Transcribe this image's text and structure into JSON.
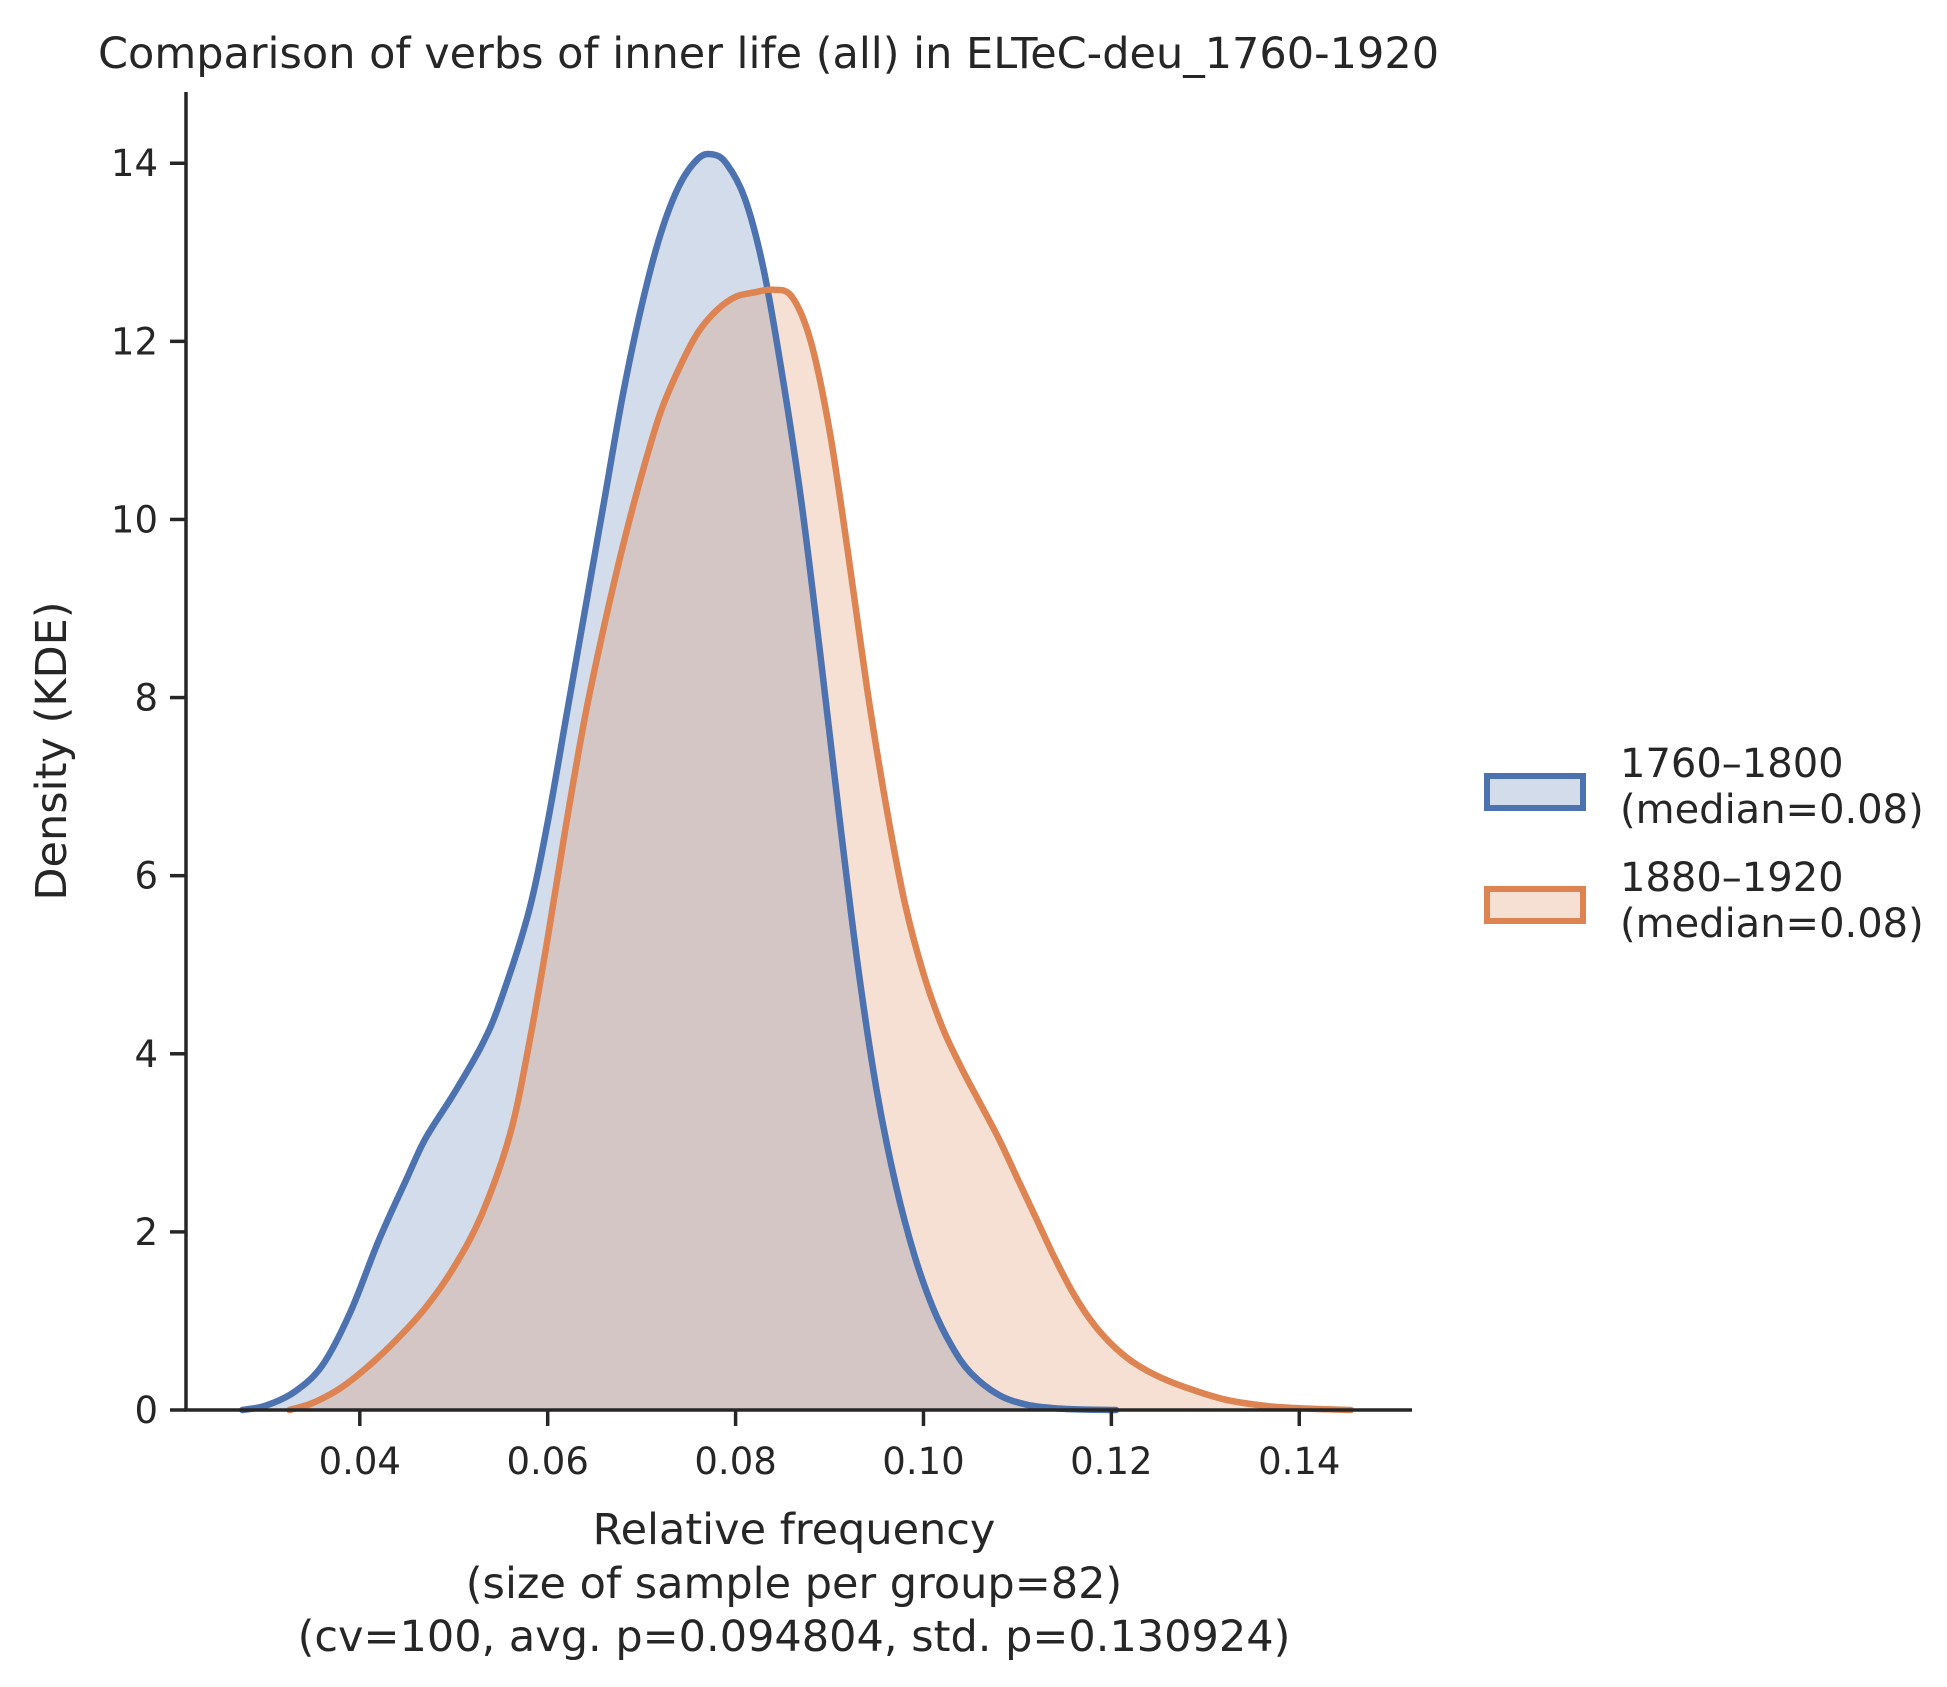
{
  "chart_data": {
    "type": "area",
    "title": "Comparison of verbs of inner life (all) in ELTeC-deu_1760-1920",
    "xlabel_lines": [
      "Relative frequency",
      "(size of sample per group=82)",
      "(cv=100, avg. p=0.094804, std. p=0.130924)"
    ],
    "ylabel": "Density (KDE)",
    "xlim": [
      0.0215,
      0.152
    ],
    "ylim": [
      0,
      14.8
    ],
    "xticks": [
      0.04,
      0.06,
      0.08,
      0.1,
      0.12,
      0.14
    ],
    "xtick_labels": [
      "0.04",
      "0.06",
      "0.08",
      "0.10",
      "0.12",
      "0.14"
    ],
    "yticks": [
      0,
      2,
      4,
      6,
      8,
      10,
      12,
      14
    ],
    "ytick_labels": [
      "0",
      "2",
      "4",
      "6",
      "8",
      "10",
      "12",
      "14"
    ],
    "grid": false,
    "legend_position": "right",
    "series": [
      {
        "name": "1760–1800",
        "legend_sublabel": "(median=0.08)",
        "color": "#4c72b0",
        "x": [
          0.0275,
          0.03,
          0.033,
          0.036,
          0.039,
          0.042,
          0.045,
          0.047,
          0.05,
          0.053,
          0.055,
          0.058,
          0.06,
          0.062,
          0.064,
          0.066,
          0.068,
          0.07,
          0.072,
          0.074,
          0.076,
          0.0775,
          0.079,
          0.081,
          0.083,
          0.085,
          0.087,
          0.089,
          0.091,
          0.093,
          0.095,
          0.097,
          0.099,
          0.101,
          0.103,
          0.105,
          0.108,
          0.111,
          0.114,
          0.117,
          0.1205
        ],
        "y": [
          0.0,
          0.05,
          0.2,
          0.5,
          1.1,
          1.9,
          2.6,
          3.05,
          3.55,
          4.1,
          4.6,
          5.6,
          6.6,
          7.8,
          9.0,
          10.2,
          11.4,
          12.4,
          13.2,
          13.75,
          14.05,
          14.1,
          14.0,
          13.6,
          12.8,
          11.6,
          10.2,
          8.5,
          6.7,
          5.0,
          3.6,
          2.55,
          1.75,
          1.15,
          0.72,
          0.42,
          0.17,
          0.06,
          0.02,
          0.005,
          0.0
        ]
      },
      {
        "name": "1880–1920",
        "legend_sublabel": "(median=0.08)",
        "color": "#dd8452",
        "x": [
          0.0325,
          0.035,
          0.038,
          0.041,
          0.044,
          0.047,
          0.05,
          0.053,
          0.056,
          0.058,
          0.06,
          0.062,
          0.064,
          0.066,
          0.068,
          0.07,
          0.072,
          0.074,
          0.076,
          0.078,
          0.08,
          0.082,
          0.084,
          0.086,
          0.088,
          0.09,
          0.092,
          0.094,
          0.096,
          0.098,
          0.1,
          0.102,
          0.104,
          0.106,
          0.108,
          0.11,
          0.112,
          0.114,
          0.116,
          0.118,
          0.12,
          0.122,
          0.124,
          0.126,
          0.128,
          0.13,
          0.132,
          0.134,
          0.137,
          0.14,
          0.143,
          0.1455
        ],
        "y": [
          0.0,
          0.08,
          0.25,
          0.5,
          0.8,
          1.15,
          1.6,
          2.2,
          3.1,
          4.1,
          5.3,
          6.6,
          7.8,
          8.8,
          9.7,
          10.5,
          11.2,
          11.7,
          12.1,
          12.35,
          12.5,
          12.55,
          12.58,
          12.5,
          12.0,
          11.0,
          9.6,
          8.1,
          6.8,
          5.7,
          4.9,
          4.3,
          3.85,
          3.45,
          3.05,
          2.6,
          2.15,
          1.7,
          1.3,
          0.98,
          0.74,
          0.56,
          0.43,
          0.33,
          0.25,
          0.18,
          0.12,
          0.08,
          0.04,
          0.02,
          0.008,
          0.0
        ]
      }
    ]
  }
}
